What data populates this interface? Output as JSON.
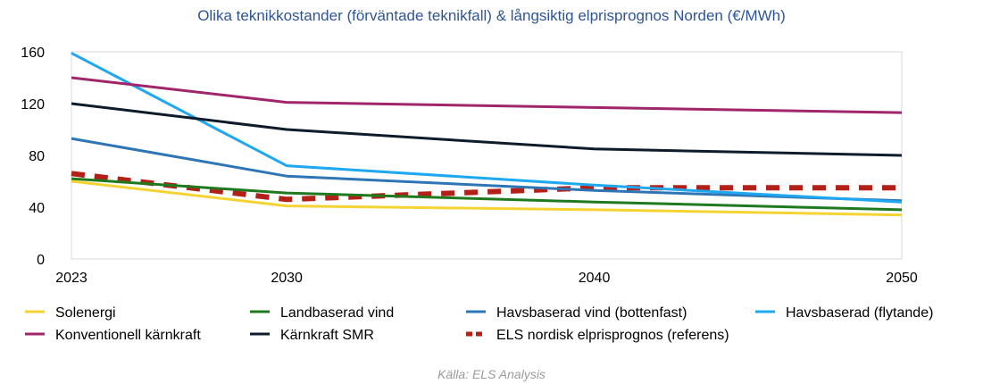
{
  "chart_data": {
    "type": "line",
    "title": "Olika teknikkostander (förväntade teknikfall) & långsiktig elprisprognos Norden (€/MWh)",
    "xlabel": "",
    "ylabel": "",
    "x": [
      2023,
      2030,
      2040,
      2050
    ],
    "x_ticks": [
      "2023",
      "2030",
      "2040",
      "2050"
    ],
    "y_ticks": [
      "0",
      "40",
      "80",
      "120",
      "160"
    ],
    "ylim": [
      0,
      160
    ],
    "grid": false,
    "legend_position": "bottom",
    "series": [
      {
        "name": "Solenergi",
        "color": "#f5d333",
        "style": "solid",
        "values": [
          60,
          41,
          38,
          34
        ]
      },
      {
        "name": "Landbaserad vind",
        "color": "#1f7a1f",
        "style": "solid",
        "values": [
          62,
          51,
          44,
          38
        ]
      },
      {
        "name": "Havsbaserad vind (bottenfast)",
        "color": "#2e75b6",
        "style": "solid",
        "values": [
          93,
          64,
          53,
          45
        ]
      },
      {
        "name": "Havsbaserad (flytande)",
        "color": "#1fa7f0",
        "style": "solid",
        "values": [
          159,
          72,
          57,
          44
        ]
      },
      {
        "name": "Konventionell kärnkraft",
        "color": "#a0256a",
        "style": "solid",
        "values": [
          140,
          121,
          117,
          113
        ]
      },
      {
        "name": "Kärnkraft SMR",
        "color": "#0d1b2a",
        "style": "solid",
        "values": [
          120,
          100,
          85,
          80
        ]
      },
      {
        "name": "ELS nordisk elprisprognos (referens)",
        "color": "#b22018",
        "style": "dashed",
        "values": [
          66,
          46,
          55,
          55
        ]
      }
    ]
  },
  "source_note": "Källa: ELS Analysis"
}
